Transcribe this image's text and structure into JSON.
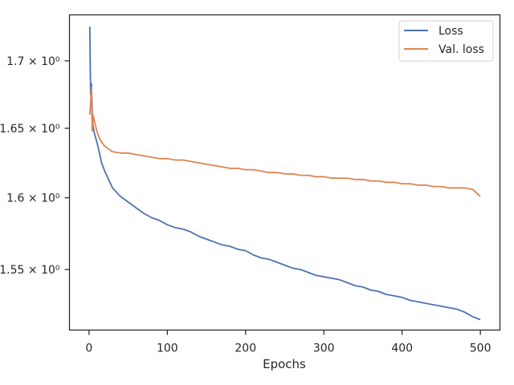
{
  "chart_data": {
    "type": "line",
    "title": "",
    "xlabel": "Epochs",
    "ylabel": "",
    "xlim": [
      -25,
      525
    ],
    "ylim": [
      1.509,
      1.735
    ],
    "yscale": "log",
    "grid": false,
    "legend_placement": "top-right",
    "x_ticks": [
      0,
      100,
      200,
      300,
      400,
      500
    ],
    "x_tick_labels": [
      "0",
      "100",
      "200",
      "300",
      "400",
      "500"
    ],
    "y_ticks": [
      1.55,
      1.6,
      1.65,
      1.7
    ],
    "y_tick_labels": [
      "1.55 × 10⁰",
      "1.6 × 10⁰",
      "1.65 × 10⁰",
      "1.7 × 10⁰"
    ],
    "series": [
      {
        "name": "Loss",
        "color": "#4c72b0",
        "x": [
          1,
          2,
          3,
          4,
          5,
          7,
          10,
          13,
          16,
          20,
          25,
          30,
          40,
          50,
          60,
          70,
          80,
          90,
          100,
          110,
          120,
          130,
          140,
          150,
          160,
          170,
          180,
          190,
          200,
          210,
          220,
          230,
          240,
          250,
          260,
          270,
          280,
          290,
          300,
          310,
          320,
          330,
          340,
          350,
          360,
          370,
          380,
          390,
          400,
          410,
          420,
          430,
          440,
          450,
          460,
          470,
          480,
          490,
          500
        ],
        "y": [
          1.726,
          1.675,
          1.683,
          1.662,
          1.652,
          1.646,
          1.64,
          1.633,
          1.625,
          1.619,
          1.613,
          1.607,
          1.601,
          1.597,
          1.593,
          1.589,
          1.586,
          1.584,
          1.581,
          1.579,
          1.578,
          1.576,
          1.573,
          1.571,
          1.569,
          1.567,
          1.566,
          1.564,
          1.563,
          1.56,
          1.558,
          1.557,
          1.555,
          1.553,
          1.551,
          1.55,
          1.548,
          1.546,
          1.545,
          1.544,
          1.543,
          1.541,
          1.539,
          1.538,
          1.536,
          1.535,
          1.533,
          1.532,
          1.531,
          1.529,
          1.528,
          1.527,
          1.526,
          1.525,
          1.524,
          1.523,
          1.521,
          1.518,
          1.516
        ]
      },
      {
        "name": "Val. loss",
        "color": "#dd8452",
        "x": [
          1,
          2,
          3,
          4,
          5,
          7,
          10,
          13,
          16,
          20,
          25,
          30,
          40,
          50,
          60,
          70,
          80,
          90,
          100,
          110,
          120,
          130,
          140,
          150,
          160,
          170,
          180,
          190,
          200,
          210,
          220,
          230,
          240,
          250,
          260,
          270,
          280,
          290,
          300,
          310,
          320,
          330,
          340,
          350,
          360,
          370,
          380,
          390,
          400,
          410,
          420,
          430,
          440,
          450,
          460,
          470,
          480,
          490,
          500
        ],
        "y": [
          1.66,
          1.668,
          1.68,
          1.648,
          1.66,
          1.655,
          1.648,
          1.643,
          1.64,
          1.637,
          1.635,
          1.633,
          1.632,
          1.632,
          1.631,
          1.63,
          1.629,
          1.628,
          1.628,
          1.627,
          1.627,
          1.626,
          1.625,
          1.624,
          1.623,
          1.622,
          1.621,
          1.621,
          1.62,
          1.62,
          1.619,
          1.618,
          1.618,
          1.617,
          1.617,
          1.616,
          1.616,
          1.615,
          1.615,
          1.614,
          1.614,
          1.614,
          1.613,
          1.613,
          1.612,
          1.612,
          1.611,
          1.611,
          1.61,
          1.61,
          1.609,
          1.609,
          1.608,
          1.608,
          1.607,
          1.607,
          1.607,
          1.606,
          1.601
        ]
      }
    ]
  }
}
